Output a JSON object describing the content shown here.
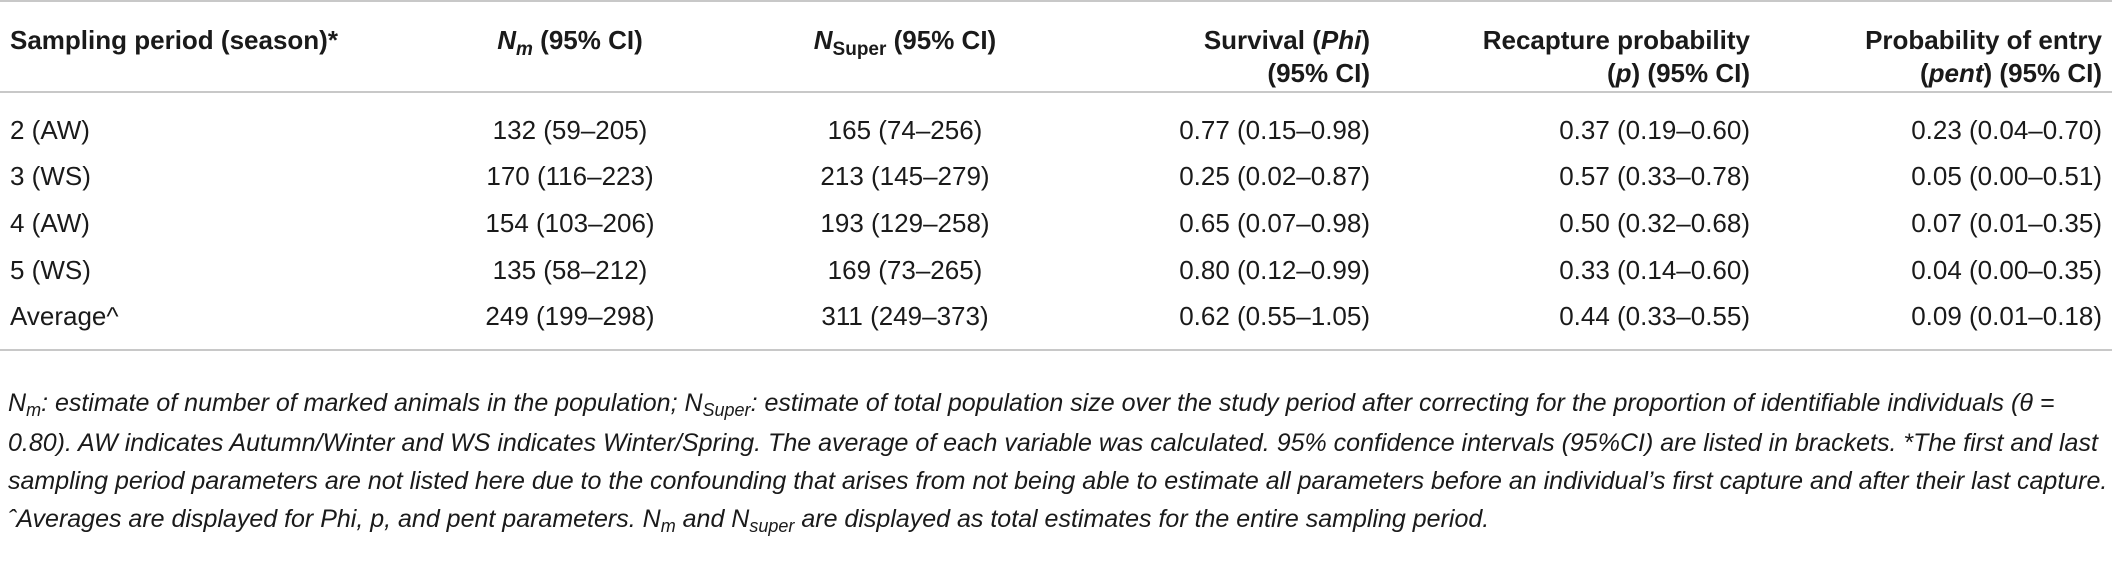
{
  "table": {
    "headers": {
      "col0": "Sampling period (season)*",
      "col1_symbol": "N",
      "col1_sub": "m",
      "col1_rest": " (95% CI)",
      "col2_symbol": "N",
      "col2_sub": "Super",
      "col2_rest": " (95% CI)",
      "col3_line1_a": "Survival (",
      "col3_line1_i": "Phi",
      "col3_line1_b": ")",
      "col3_line2": "(95% CI)",
      "col4_line1": "Recapture probability",
      "col4_line2_a": "(",
      "col4_line2_i": "p",
      "col4_line2_b": ") (95% CI)",
      "col5_line1": "Probability of entry",
      "col5_line2_a": "(",
      "col5_line2_i": "pent",
      "col5_line2_b": ") (95% CI)"
    },
    "rows": [
      [
        "2 (AW)",
        "132 (59–205)",
        "165 (74–256)",
        "0.77 (0.15–0.98)",
        "0.37 (0.19–0.60)",
        "0.23 (0.04–0.70)"
      ],
      [
        "3 (WS)",
        "170 (116–223)",
        "213 (145–279)",
        "0.25 (0.02–0.87)",
        "0.57 (0.33–0.78)",
        "0.05 (0.00–0.51)"
      ],
      [
        "4 (AW)",
        "154 (103–206)",
        "193 (129–258)",
        "0.65 (0.07–0.98)",
        "0.50 (0.32–0.68)",
        "0.07 (0.01–0.35)"
      ],
      [
        "5 (WS)",
        "135 (58–212)",
        "169 (73–265)",
        "0.80 (0.12–0.99)",
        "0.33 (0.14–0.60)",
        "0.04 (0.00–0.35)"
      ],
      [
        "Average^",
        "249 (199–298)",
        "311 (249–373)",
        "0.62 (0.55–1.05)",
        "0.44 (0.33–0.55)",
        "0.09 (0.01–0.18)"
      ]
    ]
  },
  "footnote": {
    "n_symbol": "N",
    "n_sub_m": "m",
    "part1": ": estimate of number of marked animals in the population; N",
    "n_sub_super": "Super",
    "part2": ": estimate of total population size over the study period after correcting for the proportion of identifiable individuals (θ = 0.80). AW indicates Autumn/Winter and WS indicates Winter/Spring. The average of each variable was calculated. 95% confidence intervals (95%CI) are listed in brackets. *The first and last sampling period parameters are not listed here due to the confounding that arises from not being able to estimate all parameters before an individual’s first capture and after their last capture. ˆAverages are displayed for Phi, p, and pent parameters. N",
    "n_sub_m2": "m",
    "part3": " and N",
    "n_sub_super2": "super",
    "part4": " are displayed as total estimates for the entire sampling period."
  }
}
